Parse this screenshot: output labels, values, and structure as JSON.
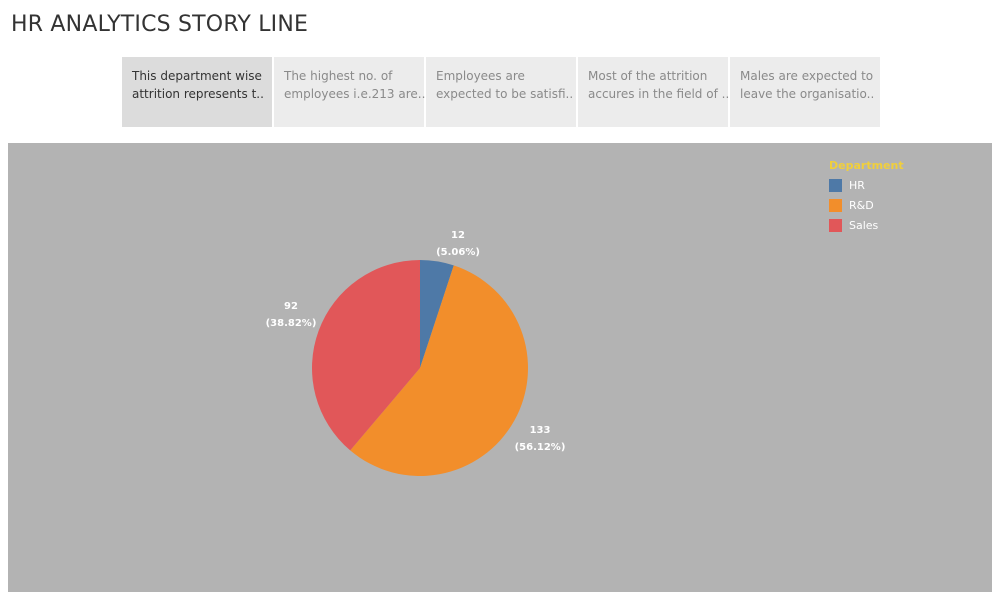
{
  "story": {
    "title": "HR ANALYTICS STORY LINE",
    "points": [
      {
        "line1": "This department wise",
        "line2": "attrition represents t..",
        "active": true
      },
      {
        "line1": "The highest no. of",
        "line2": "employees i.e.213 are..",
        "active": false
      },
      {
        "line1": "Employees are",
        "line2": "expected to be satisfi..",
        "active": false
      },
      {
        "line1": "Most of the attrition",
        "line2": "accures in the field of ..",
        "active": false
      },
      {
        "line1": "Males are expected to",
        "line2": "leave the organisatio..",
        "active": false
      }
    ]
  },
  "chart_data": {
    "type": "pie",
    "legend_title": "Department",
    "legend_position": "top-right",
    "slices": [
      {
        "category": "HR",
        "value": 12,
        "percent_label": "(5.06%)",
        "color": "#4e79a7"
      },
      {
        "category": "R&D",
        "value": 133,
        "percent_label": "(56.12%)",
        "color": "#f28e2b"
      },
      {
        "category": "Sales",
        "value": 92,
        "percent_label": "(38.82%)",
        "color": "#e15759"
      }
    ]
  },
  "colors": {
    "background": "#b3b3b3",
    "legend_title": "#f1cf3b"
  }
}
